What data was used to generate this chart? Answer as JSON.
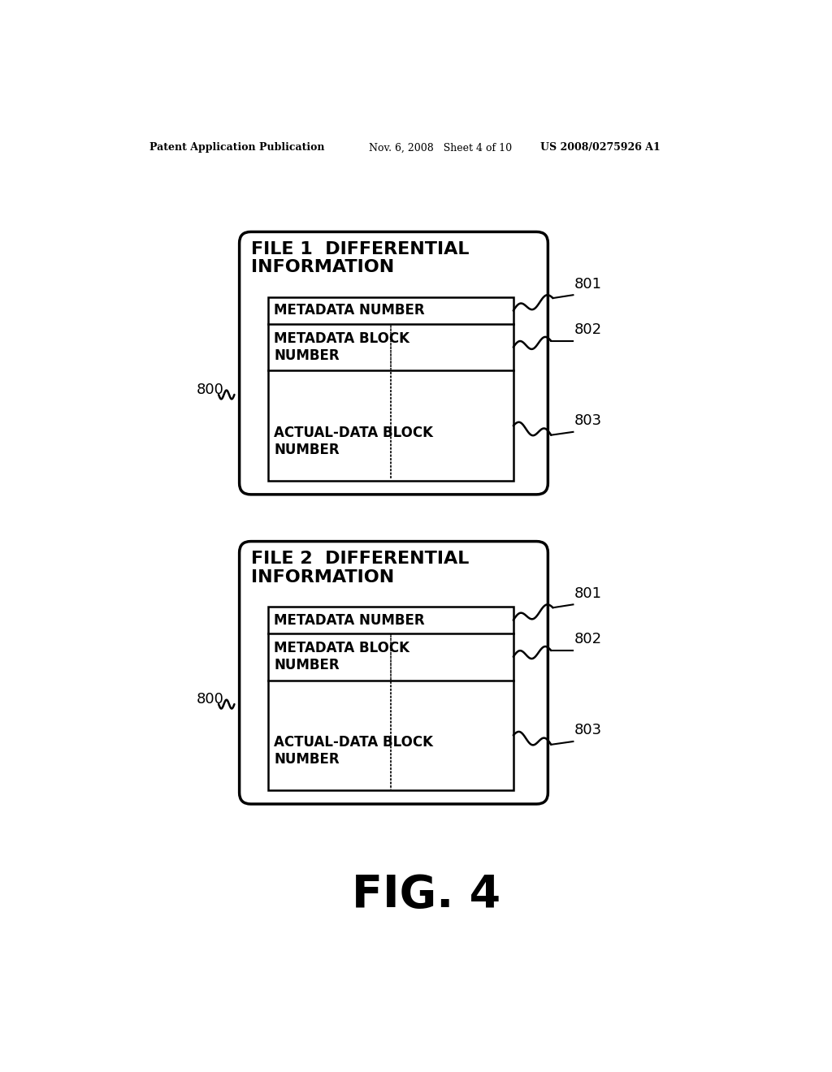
{
  "header_left": "Patent Application Publication",
  "header_mid": "Nov. 6, 2008   Sheet 4 of 10",
  "header_right": "US 2008/0275926 A1",
  "fig_label": "FIG. 4",
  "diagrams": [
    {
      "title": "FILE 1  DIFFERENTIAL\nINFORMATION",
      "label_outer": "800",
      "label_801": "801",
      "label_802": "802",
      "label_803": "803",
      "row1": "METADATA NUMBER",
      "row2": "METADATA BLOCK\nNUMBER",
      "row3": "ACTUAL-DATA BLOCK\nNUMBER"
    },
    {
      "title": "FILE 2  DIFFERENTIAL\nINFORMATION",
      "label_outer": "800",
      "label_801": "801",
      "label_802": "802",
      "label_803": "803",
      "row1": "METADATA NUMBER",
      "row2": "METADATA BLOCK\nNUMBER",
      "row3": "ACTUAL-DATA BLOCK\nNUMBER"
    }
  ],
  "background_color": "#ffffff",
  "box_edge_color": "#000000",
  "text_color": "#000000",
  "header_fontsize": 9,
  "title_fontsize": 16,
  "row_fontsize": 12,
  "label_fontsize": 13,
  "fig_label_fontsize": 40
}
